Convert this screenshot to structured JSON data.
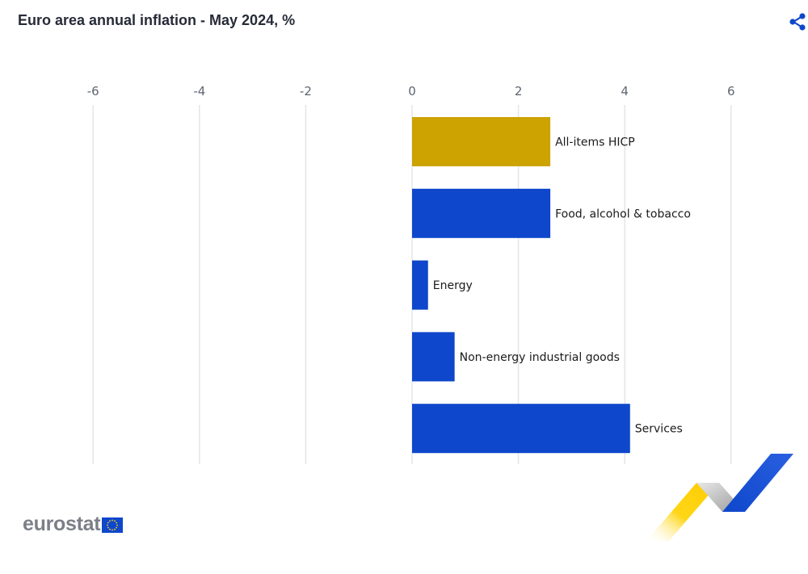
{
  "header": {
    "title": "Euro area annual inflation - May 2024, %"
  },
  "icons": {
    "share": "share-icon",
    "flag": "eu-flag-icon"
  },
  "branding": {
    "logo_text": "eurostat"
  },
  "colors": {
    "headline": "#cca300",
    "components": "#0e47cb",
    "grid": "#e3e5ea",
    "share": "#0e47cb"
  },
  "chart_data": {
    "type": "bar",
    "orientation": "horizontal",
    "title": "Euro area annual inflation - May 2024, %",
    "xlabel": "",
    "ylabel": "",
    "xlim": [
      -6,
      7
    ],
    "ticks": [
      -6,
      -4,
      -2,
      0,
      2,
      4,
      6
    ],
    "grid": true,
    "categories": [
      "All-items HICP",
      "Food, alcohol & tobacco",
      "Energy",
      "Non-energy industrial goods",
      "Services"
    ],
    "values": [
      2.6,
      2.6,
      0.3,
      0.8,
      4.1
    ],
    "bar_colors": [
      "#cca300",
      "#0e47cb",
      "#0e47cb",
      "#0e47cb",
      "#0e47cb"
    ]
  }
}
